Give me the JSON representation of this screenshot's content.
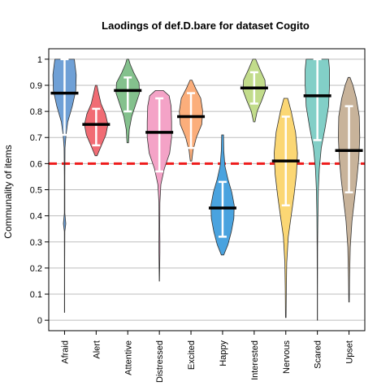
{
  "chart_data": {
    "type": "violin",
    "title": "Laodings of def.D.bare for dataset Cogito",
    "xlabel": "",
    "ylabel": "Communality of items",
    "ylim": [
      -0.04,
      1.04
    ],
    "yticks": [
      0,
      0.1,
      0.2,
      0.3,
      0.4,
      0.5,
      0.6,
      0.7,
      0.8,
      0.9,
      1
    ],
    "ytick_labels": [
      "0",
      "0.1",
      "0.2",
      "0.3",
      "0.4",
      "0.5",
      "0.6",
      "0.7",
      "0.8",
      "0.9",
      "1"
    ],
    "grid": "horizontal",
    "reference_line": 0.6,
    "reference_color": "#ee1c1c",
    "categories": [
      "Afraid",
      "Alert",
      "Attentive",
      "Distressed",
      "Excited",
      "Happy",
      "Interested",
      "Nervous",
      "Scared",
      "Upset"
    ],
    "series": [
      {
        "category": "Afraid",
        "color": "#6fa0d6",
        "median": 0.87,
        "whisker_low": 0.71,
        "whisker_high": 1.0,
        "min": 0.03,
        "max": 1.0,
        "profile": [
          [
            0.03,
            0.004
          ],
          [
            0.2,
            0.006
          ],
          [
            0.34,
            0.01
          ],
          [
            0.37,
            0.05
          ],
          [
            0.41,
            0.01
          ],
          [
            0.55,
            0.01
          ],
          [
            0.66,
            0.02
          ],
          [
            0.71,
            0.06
          ],
          [
            0.76,
            0.13
          ],
          [
            0.82,
            0.32
          ],
          [
            0.88,
            0.46
          ],
          [
            0.94,
            0.48
          ],
          [
            1.0,
            0.4
          ]
        ]
      },
      {
        "category": "Alert",
        "color": "#f16c74",
        "median": 0.75,
        "whisker_low": 0.67,
        "whisker_high": 0.81,
        "min": 0.63,
        "max": 0.9,
        "profile": [
          [
            0.63,
            0.04
          ],
          [
            0.67,
            0.22
          ],
          [
            0.71,
            0.4
          ],
          [
            0.75,
            0.48
          ],
          [
            0.79,
            0.38
          ],
          [
            0.83,
            0.2
          ],
          [
            0.87,
            0.1
          ],
          [
            0.9,
            0.03
          ]
        ]
      },
      {
        "category": "Attentive",
        "color": "#84c18d",
        "median": 0.88,
        "whisker_low": 0.8,
        "whisker_high": 0.93,
        "min": 0.68,
        "max": 1.0,
        "profile": [
          [
            0.68,
            0.03
          ],
          [
            0.73,
            0.06
          ],
          [
            0.78,
            0.16
          ],
          [
            0.83,
            0.34
          ],
          [
            0.87,
            0.48
          ],
          [
            0.91,
            0.46
          ],
          [
            0.95,
            0.24
          ],
          [
            0.98,
            0.1
          ],
          [
            1.0,
            0.04
          ]
        ]
      },
      {
        "category": "Distressed",
        "color": "#f4a3c7",
        "median": 0.72,
        "whisker_low": 0.57,
        "whisker_high": 0.85,
        "min": 0.15,
        "max": 0.88,
        "profile": [
          [
            0.15,
            0.005
          ],
          [
            0.26,
            0.02
          ],
          [
            0.3,
            0.02
          ],
          [
            0.36,
            0.015
          ],
          [
            0.45,
            0.02
          ],
          [
            0.52,
            0.06
          ],
          [
            0.58,
            0.2
          ],
          [
            0.64,
            0.42
          ],
          [
            0.7,
            0.5
          ],
          [
            0.76,
            0.5
          ],
          [
            0.82,
            0.48
          ],
          [
            0.86,
            0.4
          ],
          [
            0.88,
            0.16
          ]
        ]
      },
      {
        "category": "Excited",
        "color": "#fbae7b",
        "median": 0.78,
        "whisker_low": 0.66,
        "whisker_high": 0.87,
        "min": 0.61,
        "max": 0.92,
        "profile": [
          [
            0.61,
            0.03
          ],
          [
            0.65,
            0.08
          ],
          [
            0.7,
            0.22
          ],
          [
            0.75,
            0.44
          ],
          [
            0.8,
            0.48
          ],
          [
            0.85,
            0.4
          ],
          [
            0.89,
            0.18
          ],
          [
            0.92,
            0.04
          ]
        ]
      },
      {
        "category": "Happy",
        "color": "#4aa3df",
        "median": 0.43,
        "whisker_low": 0.32,
        "whisker_high": 0.53,
        "min": 0.25,
        "max": 0.71,
        "profile": [
          [
            0.25,
            0.05
          ],
          [
            0.29,
            0.22
          ],
          [
            0.34,
            0.36
          ],
          [
            0.39,
            0.46
          ],
          [
            0.44,
            0.48
          ],
          [
            0.49,
            0.38
          ],
          [
            0.54,
            0.22
          ],
          [
            0.59,
            0.1
          ],
          [
            0.65,
            0.05
          ],
          [
            0.71,
            0.04
          ]
        ]
      },
      {
        "category": "Interested",
        "color": "#c2dc8b",
        "median": 0.89,
        "whisker_low": 0.83,
        "whisker_high": 0.95,
        "min": 0.76,
        "max": 1.0,
        "profile": [
          [
            0.76,
            0.03
          ],
          [
            0.8,
            0.12
          ],
          [
            0.84,
            0.3
          ],
          [
            0.88,
            0.46
          ],
          [
            0.92,
            0.44
          ],
          [
            0.96,
            0.24
          ],
          [
            1.0,
            0.06
          ]
        ]
      },
      {
        "category": "Nervous",
        "color": "#fbd774",
        "median": 0.61,
        "whisker_low": 0.44,
        "whisker_high": 0.78,
        "min": 0.01,
        "max": 0.85,
        "profile": [
          [
            0.01,
            0.01
          ],
          [
            0.12,
            0.02
          ],
          [
            0.22,
            0.04
          ],
          [
            0.32,
            0.1
          ],
          [
            0.4,
            0.22
          ],
          [
            0.48,
            0.34
          ],
          [
            0.56,
            0.44
          ],
          [
            0.64,
            0.48
          ],
          [
            0.72,
            0.4
          ],
          [
            0.8,
            0.22
          ],
          [
            0.85,
            0.08
          ]
        ]
      },
      {
        "category": "Scared",
        "color": "#82cfc7",
        "median": 0.86,
        "whisker_low": 0.69,
        "whisker_high": 1.0,
        "min": 0.0,
        "max": 1.0,
        "profile": [
          [
            0.0,
            0.004
          ],
          [
            0.1,
            0.006
          ],
          [
            0.28,
            0.01
          ],
          [
            0.4,
            0.02
          ],
          [
            0.5,
            0.04
          ],
          [
            0.58,
            0.08
          ],
          [
            0.66,
            0.16
          ],
          [
            0.74,
            0.32
          ],
          [
            0.82,
            0.46
          ],
          [
            0.9,
            0.5
          ],
          [
            0.96,
            0.5
          ],
          [
            1.0,
            0.46
          ]
        ]
      },
      {
        "category": "Upset",
        "color": "#c8b39a",
        "median": 0.65,
        "whisker_low": 0.49,
        "whisker_high": 0.82,
        "min": 0.07,
        "max": 0.93,
        "profile": [
          [
            0.07,
            0.01
          ],
          [
            0.16,
            0.02
          ],
          [
            0.28,
            0.05
          ],
          [
            0.38,
            0.12
          ],
          [
            0.46,
            0.22
          ],
          [
            0.54,
            0.32
          ],
          [
            0.62,
            0.4
          ],
          [
            0.7,
            0.44
          ],
          [
            0.78,
            0.42
          ],
          [
            0.85,
            0.3
          ],
          [
            0.9,
            0.16
          ],
          [
            0.93,
            0.04
          ]
        ]
      }
    ]
  }
}
